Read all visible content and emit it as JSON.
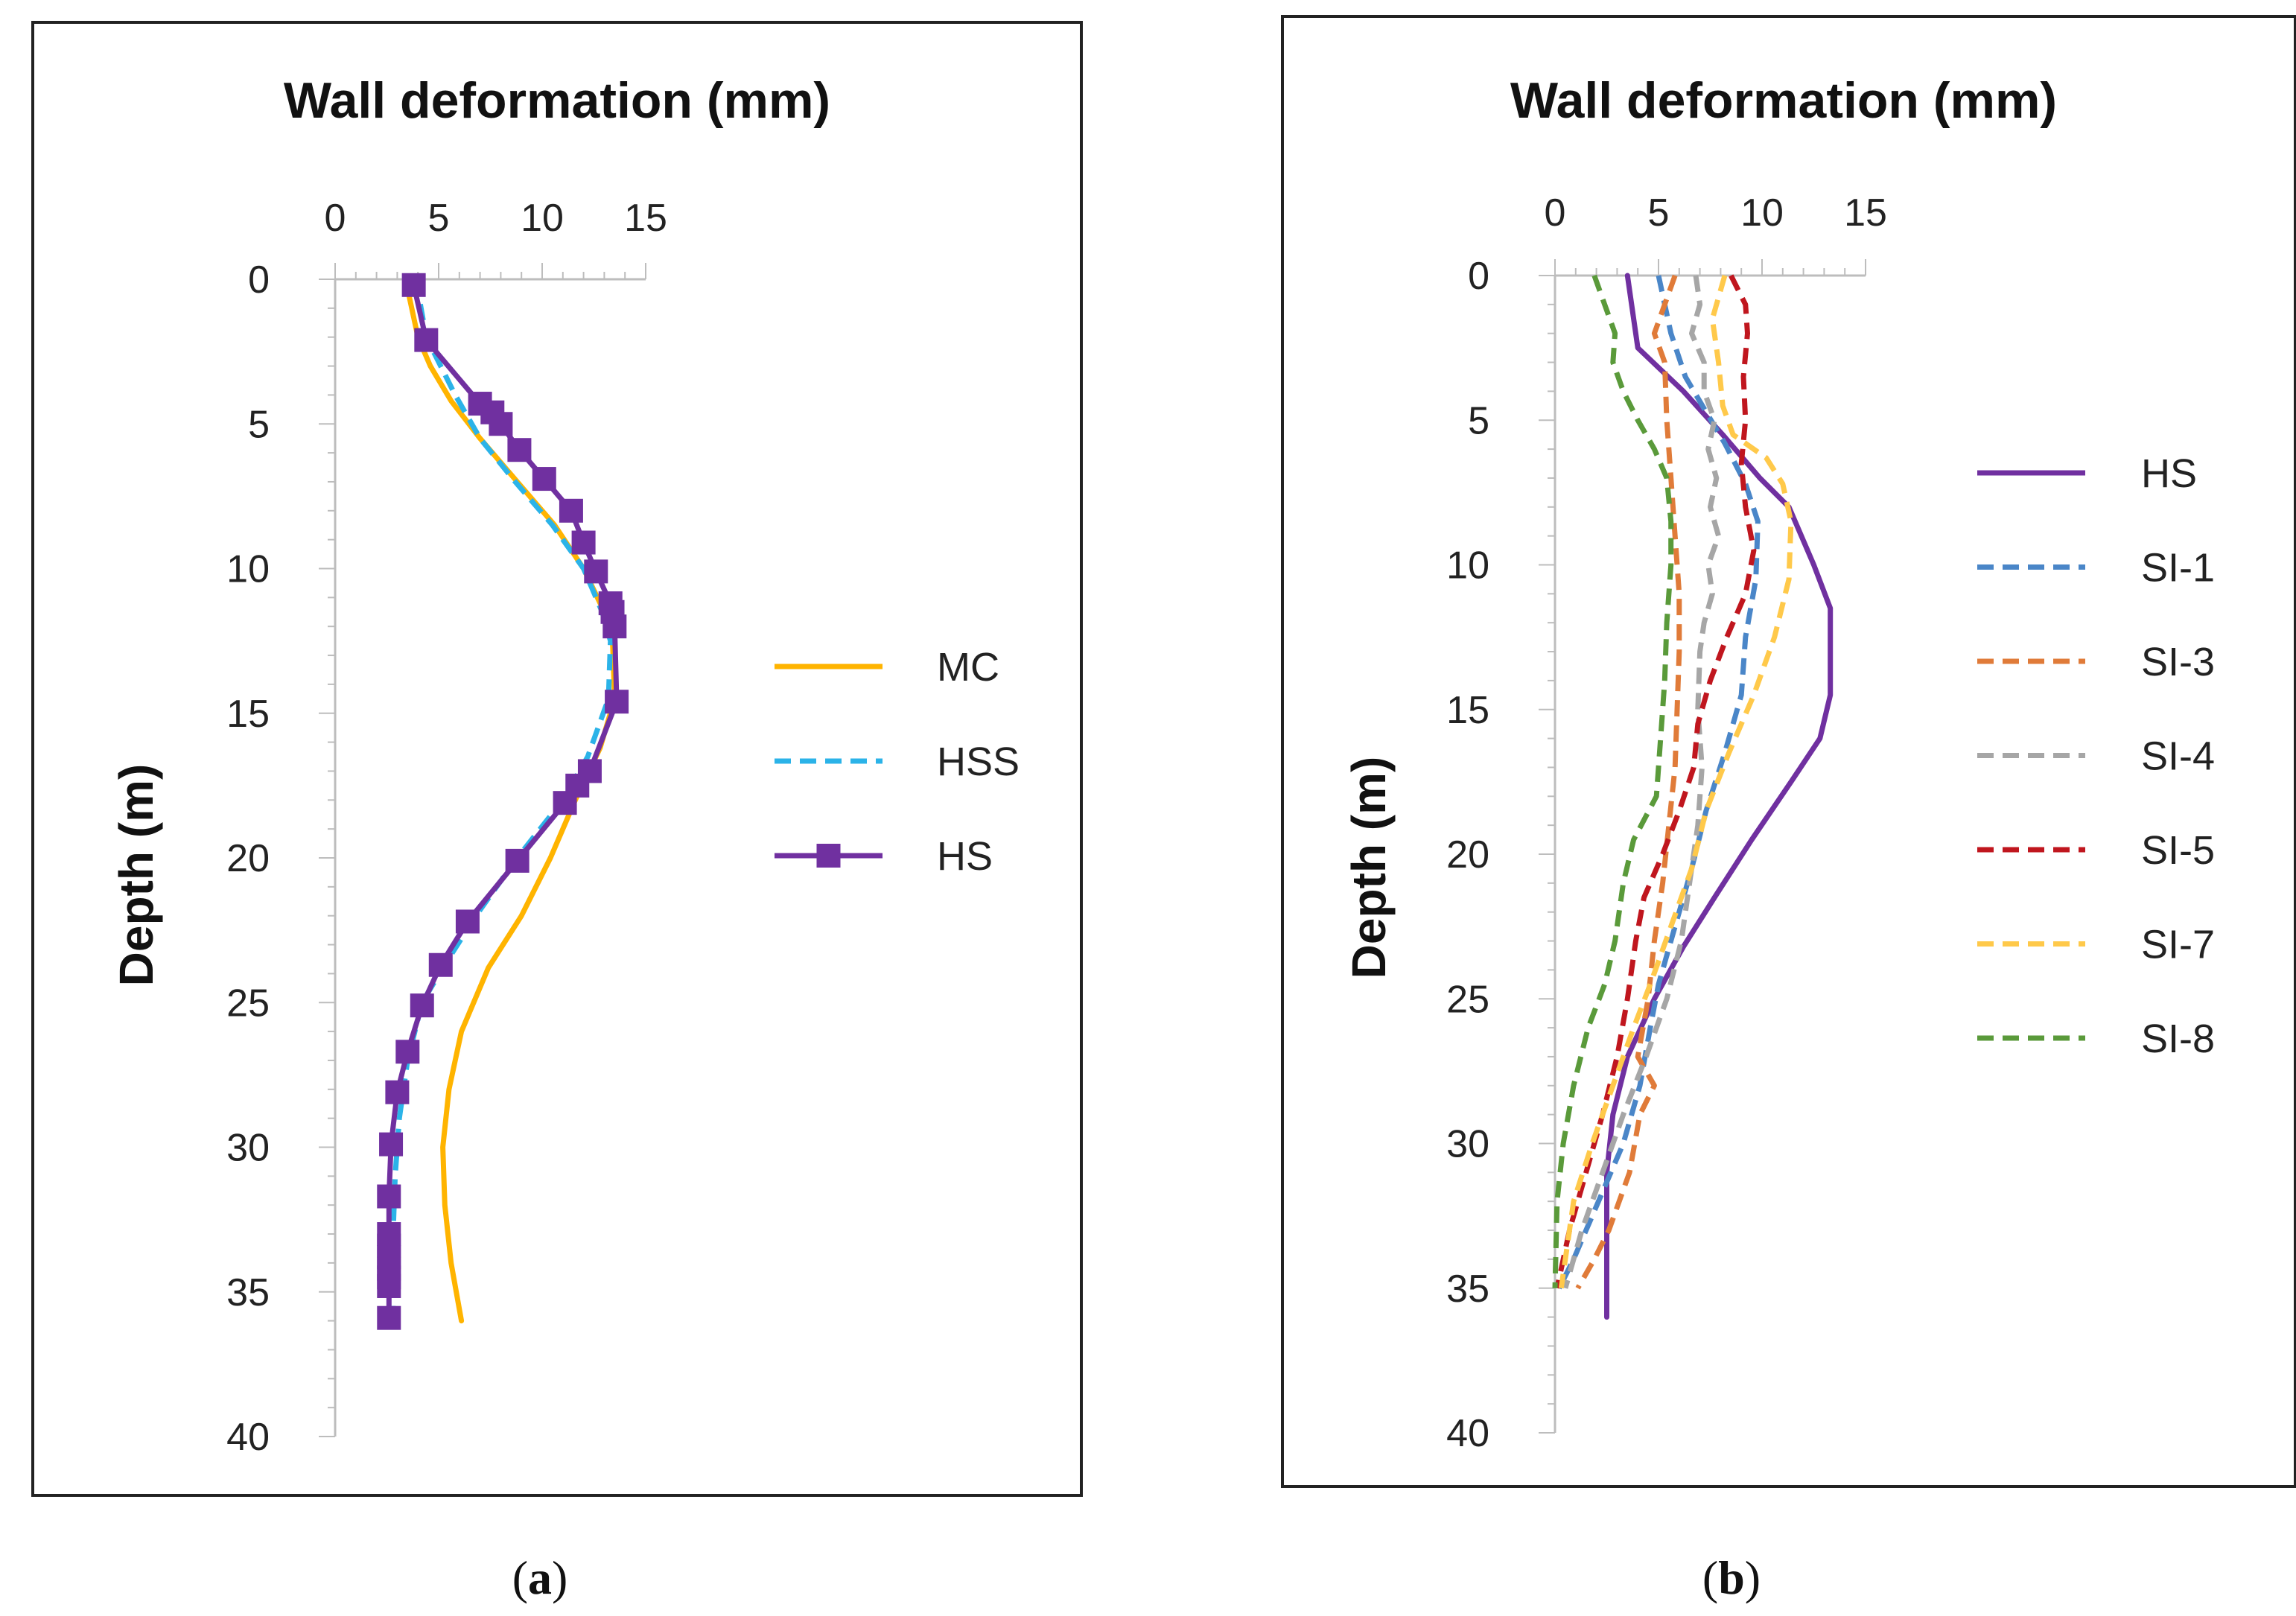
{
  "chart_data": [
    {
      "type": "line",
      "panel": "a",
      "caption_letter": "a",
      "title": "Wall deformation (mm)",
      "title_word1": "Wall deformation",
      "title_word2": "(mm)",
      "xlabel": "Wall deformation (mm)",
      "ylabel": "Depth (m)",
      "ylabel_word1": "Depth",
      "ylabel_word2": "(m)",
      "xlim": [
        0,
        15
      ],
      "ylim": [
        0,
        40
      ],
      "x_ticks": [
        "0",
        "5",
        "10",
        "15"
      ],
      "y_ticks": [
        "0",
        "5",
        "10",
        "15",
        "20",
        "25",
        "30",
        "35",
        "40"
      ],
      "legend_position": "right",
      "series": [
        {
          "name": "MC",
          "color": "#FFB400",
          "style": "solid",
          "marker": "none",
          "points": [
            [
              3.4,
              0
            ],
            [
              4.0,
              2
            ],
            [
              4.6,
              3
            ],
            [
              5.6,
              4.2
            ],
            [
              7.0,
              5.5
            ],
            [
              8.8,
              7
            ],
            [
              10.6,
              8.5
            ],
            [
              12.0,
              10
            ],
            [
              13.0,
              11.5
            ],
            [
              13.4,
              12.5
            ],
            [
              13.5,
              14.5
            ],
            [
              12.8,
              16.2
            ],
            [
              11.6,
              18
            ],
            [
              10.4,
              20
            ],
            [
              9.0,
              22
            ],
            [
              7.4,
              23.8
            ],
            [
              6.1,
              26
            ],
            [
              5.5,
              28
            ],
            [
              5.2,
              30
            ],
            [
              5.3,
              32
            ],
            [
              5.6,
              34
            ],
            [
              6.1,
              36
            ]
          ]
        },
        {
          "name": "HSS",
          "color": "#2BB3E8",
          "style": "dashed",
          "marker": "none",
          "points": [
            [
              3.9,
              0
            ],
            [
              4.4,
              2
            ],
            [
              5.8,
              4
            ],
            [
              7.0,
              5.5
            ],
            [
              8.7,
              7
            ],
            [
              10.5,
              8.5
            ],
            [
              12.0,
              10
            ],
            [
              12.9,
              11.5
            ],
            [
              13.3,
              12.5
            ],
            [
              13.2,
              14.5
            ],
            [
              12.2,
              16.5
            ],
            [
              11.0,
              18
            ],
            [
              8.8,
              20
            ],
            [
              6.8,
              22
            ],
            [
              5.2,
              23.8
            ],
            [
              4.2,
              25
            ],
            [
              3.5,
              27
            ],
            [
              3.1,
              29
            ],
            [
              2.9,
              31
            ],
            [
              2.8,
              33
            ],
            [
              2.8,
              36
            ]
          ]
        },
        {
          "name": "HS",
          "color": "#7030A0",
          "style": "solid",
          "marker": "square",
          "points": [
            [
              3.8,
              0.2
            ],
            [
              4.4,
              2.1
            ],
            [
              7.0,
              4.3
            ],
            [
              7.6,
              4.6
            ],
            [
              8.0,
              5.0
            ],
            [
              8.9,
              5.9
            ],
            [
              10.1,
              6.9
            ],
            [
              11.4,
              8.0
            ],
            [
              12.0,
              9.1
            ],
            [
              12.6,
              10.1
            ],
            [
              13.3,
              11.2
            ],
            [
              13.4,
              11.5
            ],
            [
              13.5,
              12.0
            ],
            [
              13.6,
              14.6
            ],
            [
              12.3,
              17.0
            ],
            [
              11.7,
              17.5
            ],
            [
              11.1,
              18.1
            ],
            [
              8.8,
              20.1
            ],
            [
              6.4,
              22.2
            ],
            [
              5.1,
              23.7
            ],
            [
              4.2,
              25.1
            ],
            [
              3.5,
              26.7
            ],
            [
              3.0,
              28.1
            ],
            [
              2.7,
              29.9
            ],
            [
              2.6,
              31.7
            ],
            [
              2.6,
              33.0
            ],
            [
              2.6,
              33.4
            ],
            [
              2.6,
              33.8
            ],
            [
              2.6,
              34.2
            ],
            [
              2.6,
              34.5
            ],
            [
              2.6,
              34.8
            ],
            [
              2.6,
              35.9
            ]
          ]
        }
      ]
    },
    {
      "type": "line",
      "panel": "b",
      "caption_letter": "b",
      "title": "Wall deformation (mm)",
      "title_word1": "Wall deformation",
      "title_word2": "(mm)",
      "xlabel": "Wall deformation (mm)",
      "ylabel": "Depth (m)",
      "ylabel_word1": "Depth",
      "ylabel_word2": "(m)",
      "xlim": [
        0,
        15
      ],
      "ylim": [
        0,
        40
      ],
      "x_ticks": [
        "0",
        "5",
        "10",
        "15"
      ],
      "y_ticks": [
        "0",
        "5",
        "10",
        "15",
        "20",
        "25",
        "30",
        "35",
        "40"
      ],
      "legend_position": "right",
      "series": [
        {
          "name": "HS",
          "color": "#7030A0",
          "style": "solid",
          "marker": "none",
          "points": [
            [
              3.5,
              0
            ],
            [
              4.0,
              2.5
            ],
            [
              6.2,
              4
            ],
            [
              8.1,
              5.5
            ],
            [
              9.9,
              7
            ],
            [
              11.3,
              8
            ],
            [
              12.5,
              10
            ],
            [
              13.3,
              11.5
            ],
            [
              13.3,
              14.5
            ],
            [
              12.8,
              16
            ],
            [
              11.4,
              17.5
            ],
            [
              9.5,
              19.5
            ],
            [
              7.7,
              21.5
            ],
            [
              6.2,
              23.2
            ],
            [
              4.8,
              25
            ],
            [
              3.5,
              27
            ],
            [
              2.8,
              29
            ],
            [
              2.5,
              31
            ],
            [
              2.5,
              34
            ],
            [
              2.5,
              36
            ]
          ]
        },
        {
          "name": "SI-1",
          "color": "#4A86C8",
          "style": "dashed",
          "marker": "none",
          "points": [
            [
              5.0,
              0
            ],
            [
              5.6,
              2
            ],
            [
              6.3,
              3.5
            ],
            [
              7.2,
              4.6
            ],
            [
              8.2,
              5.8
            ],
            [
              9.2,
              7.2
            ],
            [
              9.8,
              8.5
            ],
            [
              9.7,
              10.5
            ],
            [
              9.2,
              12.5
            ],
            [
              9.0,
              14.5
            ],
            [
              8.2,
              16.5
            ],
            [
              7.3,
              18.5
            ],
            [
              6.6,
              20.5
            ],
            [
              5.8,
              22.5
            ],
            [
              5.0,
              24.5
            ],
            [
              4.6,
              26
            ],
            [
              4.1,
              28
            ],
            [
              3.3,
              30
            ],
            [
              2.1,
              32
            ],
            [
              0.9,
              34
            ],
            [
              0.2,
              35
            ]
          ]
        },
        {
          "name": "SI-3",
          "color": "#E07B39",
          "style": "dashed",
          "marker": "none",
          "points": [
            [
              5.8,
              0
            ],
            [
              5.3,
              1
            ],
            [
              4.8,
              2
            ],
            [
              5.3,
              3
            ],
            [
              5.4,
              5
            ],
            [
              5.6,
              7
            ],
            [
              5.8,
              9
            ],
            [
              6.0,
              11
            ],
            [
              6.0,
              13
            ],
            [
              5.9,
              15
            ],
            [
              5.8,
              17
            ],
            [
              5.5,
              19
            ],
            [
              5.2,
              21
            ],
            [
              4.8,
              23
            ],
            [
              4.5,
              25
            ],
            [
              4.0,
              27
            ],
            [
              4.8,
              28
            ],
            [
              4.1,
              29
            ],
            [
              3.6,
              31
            ],
            [
              2.6,
              33
            ],
            [
              1.9,
              34
            ],
            [
              1.1,
              35
            ]
          ]
        },
        {
          "name": "SI-4",
          "color": "#A6A6A6",
          "style": "dashed",
          "marker": "none",
          "points": [
            [
              6.8,
              0
            ],
            [
              7.0,
              1
            ],
            [
              6.6,
              2
            ],
            [
              7.2,
              3
            ],
            [
              7.2,
              4
            ],
            [
              7.7,
              5
            ],
            [
              7.4,
              6
            ],
            [
              7.8,
              7
            ],
            [
              7.5,
              8
            ],
            [
              7.9,
              9
            ],
            [
              7.4,
              10
            ],
            [
              7.6,
              11
            ],
            [
              7.2,
              12
            ],
            [
              7.0,
              13
            ],
            [
              6.9,
              15
            ],
            [
              7.1,
              17
            ],
            [
              6.9,
              19
            ],
            [
              6.5,
              21
            ],
            [
              6.1,
              23
            ],
            [
              5.4,
              25
            ],
            [
              4.4,
              27
            ],
            [
              3.3,
              29
            ],
            [
              2.3,
              31
            ],
            [
              1.3,
              33
            ],
            [
              0.5,
              35
            ]
          ]
        },
        {
          "name": "SI-5",
          "color": "#C0161E",
          "style": "dashed",
          "marker": "none",
          "points": [
            [
              8.5,
              0
            ],
            [
              9.2,
              1
            ],
            [
              9.3,
              2
            ],
            [
              9.1,
              3.5
            ],
            [
              9.2,
              5
            ],
            [
              9.0,
              6.5
            ],
            [
              9.2,
              8
            ],
            [
              9.6,
              9.5
            ],
            [
              9.2,
              11
            ],
            [
              8.3,
              12.5
            ],
            [
              7.5,
              14
            ],
            [
              6.9,
              15.5
            ],
            [
              6.7,
              17
            ],
            [
              6.0,
              18.5
            ],
            [
              5.2,
              20
            ],
            [
              4.3,
              21.5
            ],
            [
              3.9,
              23
            ],
            [
              3.5,
              25
            ],
            [
              3.0,
              27
            ],
            [
              2.3,
              29
            ],
            [
              1.5,
              31
            ],
            [
              0.7,
              33
            ],
            [
              0.1,
              35
            ]
          ]
        },
        {
          "name": "SI-7",
          "color": "#FFC94A",
          "style": "dashed",
          "marker": "none",
          "points": [
            [
              8.2,
              0
            ],
            [
              7.6,
              1.5
            ],
            [
              7.9,
              3
            ],
            [
              8.1,
              4.5
            ],
            [
              8.6,
              5.5
            ],
            [
              10.2,
              6.3
            ],
            [
              11.0,
              7.2
            ],
            [
              11.4,
              8.5
            ],
            [
              11.3,
              10.5
            ],
            [
              10.6,
              12.5
            ],
            [
              9.6,
              14.5
            ],
            [
              8.4,
              16.5
            ],
            [
              7.3,
              18.5
            ],
            [
              6.6,
              20.5
            ],
            [
              5.6,
              22.5
            ],
            [
              4.6,
              24.5
            ],
            [
              3.8,
              26
            ],
            [
              2.8,
              28
            ],
            [
              1.8,
              30
            ],
            [
              0.9,
              32
            ],
            [
              0.3,
              35
            ]
          ]
        },
        {
          "name": "SI-8",
          "color": "#5A9A3A",
          "style": "dashed",
          "marker": "none",
          "points": [
            [
              1.9,
              0
            ],
            [
              2.4,
              1
            ],
            [
              2.9,
              2
            ],
            [
              2.8,
              3
            ],
            [
              3.3,
              4
            ],
            [
              4.0,
              5
            ],
            [
              4.8,
              6
            ],
            [
              5.4,
              7
            ],
            [
              5.6,
              8.5
            ],
            [
              5.6,
              10
            ],
            [
              5.4,
              12
            ],
            [
              5.3,
              14
            ],
            [
              5.1,
              16
            ],
            [
              4.9,
              18
            ],
            [
              3.8,
              19.5
            ],
            [
              3.3,
              21
            ],
            [
              2.9,
              23
            ],
            [
              2.4,
              24.5
            ],
            [
              1.6,
              26
            ],
            [
              0.9,
              28
            ],
            [
              0.4,
              30
            ],
            [
              0.1,
              32
            ],
            [
              0.0,
              35
            ]
          ]
        }
      ]
    }
  ]
}
